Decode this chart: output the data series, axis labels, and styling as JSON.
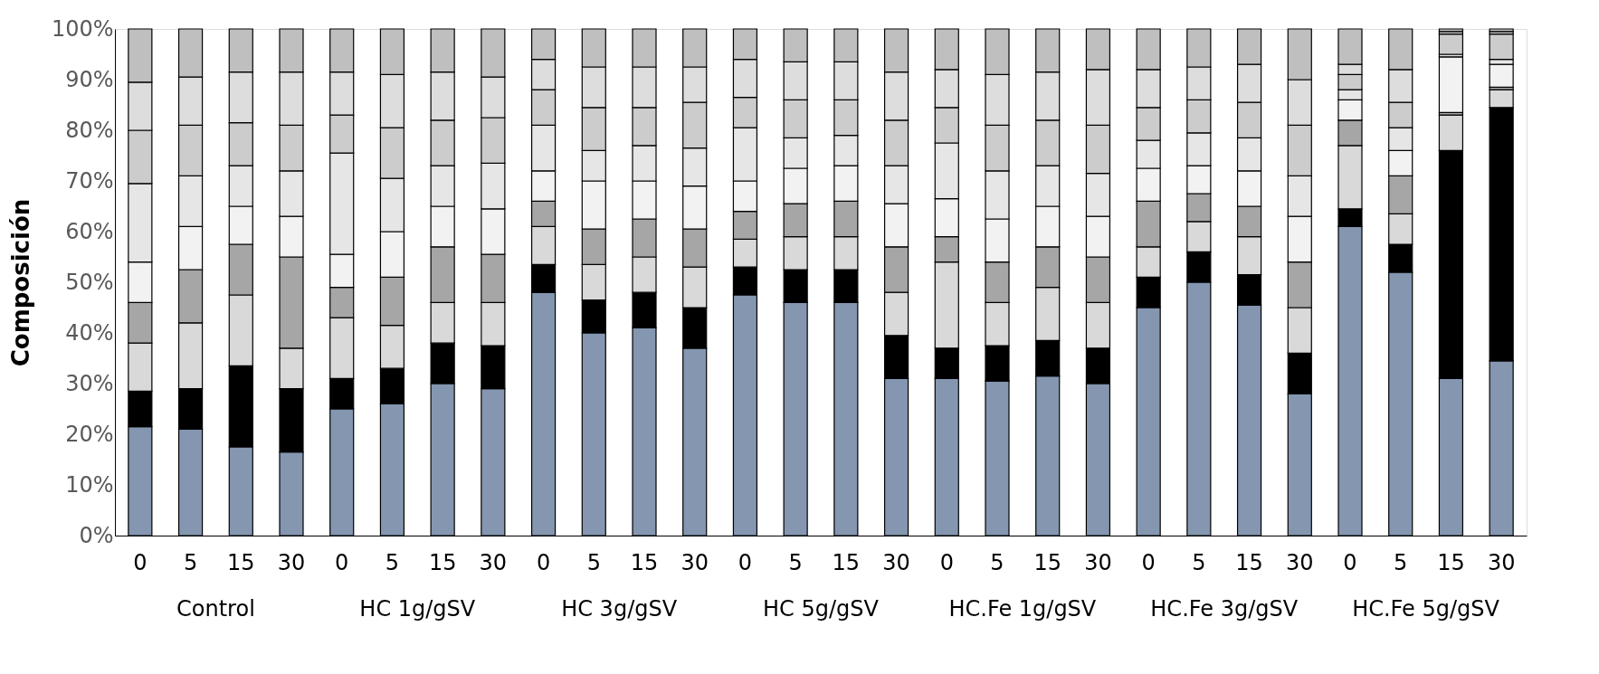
{
  "chart_data": {
    "type": "bar",
    "stacked": true,
    "ylabel": "Composición",
    "categories": [
      "0",
      "5",
      "15",
      "30",
      "0",
      "5",
      "15",
      "30",
      "0",
      "5",
      "15",
      "30",
      "0",
      "5",
      "15",
      "30",
      "0",
      "5",
      "15",
      "30",
      "0",
      "5",
      "15",
      "30",
      "0",
      "5",
      "15",
      "30"
    ],
    "annotations": [
      "Control",
      "HC 1g/gSV",
      "HC 3g/gSV",
      "HC 5g/gSV",
      "HC.Fe 1g/gSV",
      "HC.Fe 3g/gSV",
      "HC.Fe 5g/gSV"
    ],
    "ylim": [
      0,
      100
    ],
    "yticks": [
      {
        "value": 0,
        "label": "0%"
      },
      {
        "value": 10,
        "label": "10%"
      },
      {
        "value": 20,
        "label": "20%"
      },
      {
        "value": 30,
        "label": "30%"
      },
      {
        "value": 40,
        "label": "40%"
      },
      {
        "value": 50,
        "label": "50%"
      },
      {
        "value": 60,
        "label": "60%"
      },
      {
        "value": 70,
        "label": "70%"
      },
      {
        "value": 80,
        "label": "80%"
      },
      {
        "value": 90,
        "label": "90%"
      },
      {
        "value": 100,
        "label": "100%"
      }
    ],
    "grid": false,
    "legend": false,
    "series": [
      {
        "color": "#8496b0",
        "values": [
          21.5,
          21,
          17.5,
          16.5,
          25,
          26,
          30,
          29,
          48,
          40,
          41,
          37,
          47.5,
          46,
          46,
          31,
          31,
          30.5,
          31.5,
          30,
          45,
          50,
          45.5,
          28,
          61,
          52,
          31,
          34.5
        ]
      },
      {
        "color": "#000000",
        "values": [
          7,
          8,
          16,
          12.5,
          6,
          7,
          8,
          8.5,
          5.5,
          6.5,
          7,
          8,
          5.5,
          6.5,
          6.5,
          8.5,
          6,
          7,
          7,
          7,
          6,
          6,
          6,
          8,
          3.5,
          5.5,
          45,
          50
        ]
      },
      {
        "color": "#d9d9d9",
        "values": [
          9.5,
          13,
          14,
          8,
          12,
          8.5,
          8,
          8.5,
          7.5,
          7,
          7,
          8,
          5.5,
          6.5,
          6.5,
          8.5,
          17,
          8.5,
          10.5,
          9,
          6,
          6,
          7.5,
          9,
          12.5,
          6,
          7,
          3.5
        ]
      },
      {
        "color": "#a6a6a6",
        "values": [
          8,
          10.5,
          10,
          18,
          6,
          9.5,
          11,
          9.5,
          5,
          7,
          7.5,
          7.5,
          5.5,
          6.5,
          7,
          9,
          5,
          8,
          8,
          9,
          9,
          5.5,
          6,
          9,
          5,
          7.5,
          0.5,
          0.5
        ]
      },
      {
        "color": "#f2f2f2",
        "values": [
          8,
          8.5,
          7.5,
          8,
          6.5,
          9,
          8,
          9,
          6,
          9.5,
          7.5,
          8.5,
          6,
          7,
          7,
          8.5,
          7.5,
          8.5,
          8,
          8,
          6.5,
          5.5,
          7,
          9,
          4,
          5,
          11,
          4.5
        ]
      },
      {
        "color": "#e6e6e6",
        "values": [
          15.5,
          10,
          8,
          9,
          20,
          10.5,
          8,
          9,
          9,
          6,
          7,
          7.5,
          10.5,
          6,
          6,
          7.5,
          11,
          9.5,
          8,
          8.5,
          5.5,
          6.5,
          6.5,
          8,
          2,
          4.5,
          0.5,
          1
        ]
      },
      {
        "color": "#cccccc",
        "values": [
          10.5,
          10,
          8.5,
          9,
          7.5,
          10,
          9,
          9,
          7,
          8.5,
          7.5,
          9,
          6,
          7.5,
          7,
          9,
          7,
          9,
          9,
          9.5,
          6.5,
          6.5,
          7,
          10,
          3,
          5,
          4,
          5
        ]
      },
      {
        "color": "#dddddd",
        "values": [
          9.5,
          9.5,
          10,
          10.5,
          8.5,
          10.5,
          9.5,
          8,
          6,
          8,
          8,
          7,
          7.5,
          7.5,
          7.5,
          9.5,
          7.5,
          10,
          9.5,
          11,
          7.5,
          6.5,
          7.5,
          9,
          2,
          6.5,
          0.5,
          0.5
        ]
      },
      {
        "color": "#bfbfbf",
        "values": [
          10.5,
          9.5,
          8.5,
          8.5,
          8.5,
          9,
          8.5,
          9.5,
          6,
          7.5,
          7.5,
          7.5,
          6,
          6.5,
          6.5,
          8.5,
          8,
          9,
          8.5,
          8,
          8,
          7.5,
          7,
          10,
          7,
          8,
          0.5,
          0.5
        ]
      }
    ]
  }
}
